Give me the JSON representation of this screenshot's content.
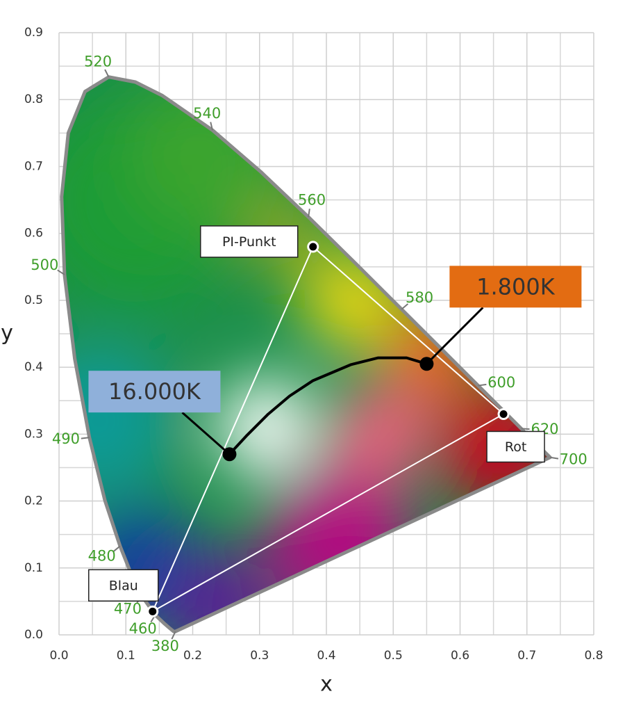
{
  "chart_data": {
    "type": "scatter",
    "xlabel": "x",
    "ylabel": "y",
    "xlim": [
      0,
      0.8
    ],
    "ylim": [
      0,
      0.9
    ],
    "xticks": [
      {
        "value": 0,
        "label": "0.0"
      },
      0.1,
      0.2,
      0.3,
      0.4,
      0.5,
      0.6,
      0.7,
      0.8
    ],
    "yticks": [
      {
        "value": 0,
        "label": "0.0"
      },
      0.1,
      0.2,
      0.3,
      0.4,
      0.5,
      0.6,
      0.7,
      0.8,
      0.9
    ],
    "xminor": [
      0.05,
      0.15,
      0.25,
      0.35,
      0.45,
      0.55,
      0.65,
      0.75
    ],
    "yminor": [
      0.05,
      0.15,
      0.25,
      0.35,
      0.45,
      0.55,
      0.65,
      0.75,
      0.85
    ],
    "grid": true,
    "locus": {
      "x": [
        0.1741,
        0.1714,
        0.1644,
        0.1566,
        0.144,
        0.1241,
        0.1096,
        0.0913,
        0.0687,
        0.0454,
        0.0235,
        0.0082,
        0.0039,
        0.0139,
        0.0389,
        0.0743,
        0.1142,
        0.1547,
        0.2296,
        0.3016,
        0.3731,
        0.4441,
        0.5125,
        0.5752,
        0.627,
        0.6658,
        0.6915,
        0.719,
        0.7347
      ],
      "y": [
        0.005,
        0.0051,
        0.0109,
        0.0177,
        0.0297,
        0.0578,
        0.0868,
        0.1327,
        0.2007,
        0.295,
        0.4127,
        0.5384,
        0.6548,
        0.7502,
        0.812,
        0.8338,
        0.8262,
        0.8059,
        0.7543,
        0.6923,
        0.6245,
        0.5547,
        0.4866,
        0.4242,
        0.3725,
        0.334,
        0.3083,
        0.2809,
        0.2653
      ],
      "color": "#8a8a8a"
    },
    "wavelengths": [
      {
        "label": "380",
        "x": 0.1741,
        "y": 0.005
      },
      {
        "label": "460",
        "x": 0.144,
        "y": 0.0297
      },
      {
        "label": "470",
        "x": 0.1241,
        "y": 0.0578
      },
      {
        "label": "480",
        "x": 0.0913,
        "y": 0.1327
      },
      {
        "label": "490",
        "x": 0.0454,
        "y": 0.295
      },
      {
        "label": "500",
        "x": 0.0082,
        "y": 0.5384
      },
      {
        "label": "520",
        "x": 0.0743,
        "y": 0.8338
      },
      {
        "label": "540",
        "x": 0.2296,
        "y": 0.7543
      },
      {
        "label": "560",
        "x": 0.3731,
        "y": 0.6245
      },
      {
        "label": "580",
        "x": 0.5125,
        "y": 0.4866
      },
      {
        "label": "600",
        "x": 0.627,
        "y": 0.3725
      },
      {
        "label": "620",
        "x": 0.6915,
        "y": 0.3083
      },
      {
        "label": "700",
        "x": 0.7347,
        "y": 0.2653
      }
    ],
    "wavelength_color": "#3f9e2a",
    "points": [
      {
        "label": "PI-Punkt",
        "x": 0.38,
        "y": 0.58
      },
      {
        "label": "Rot",
        "x": 0.665,
        "y": 0.33
      },
      {
        "label": "Blau",
        "x": 0.14,
        "y": 0.035
      }
    ],
    "curve": {
      "x": [
        0.255,
        0.28,
        0.313,
        0.345,
        0.38,
        0.437,
        0.477,
        0.52,
        0.55
      ],
      "y": [
        0.27,
        0.297,
        0.33,
        0.357,
        0.38,
        0.404,
        0.414,
        0.414,
        0.405
      ]
    },
    "temperatures": [
      {
        "label": "16.000K",
        "x": 0.255,
        "y": 0.27,
        "color": "#8fb0da"
      },
      {
        "label": "1.800K",
        "x": 0.55,
        "y": 0.405,
        "color": "#e36c12"
      }
    ]
  }
}
